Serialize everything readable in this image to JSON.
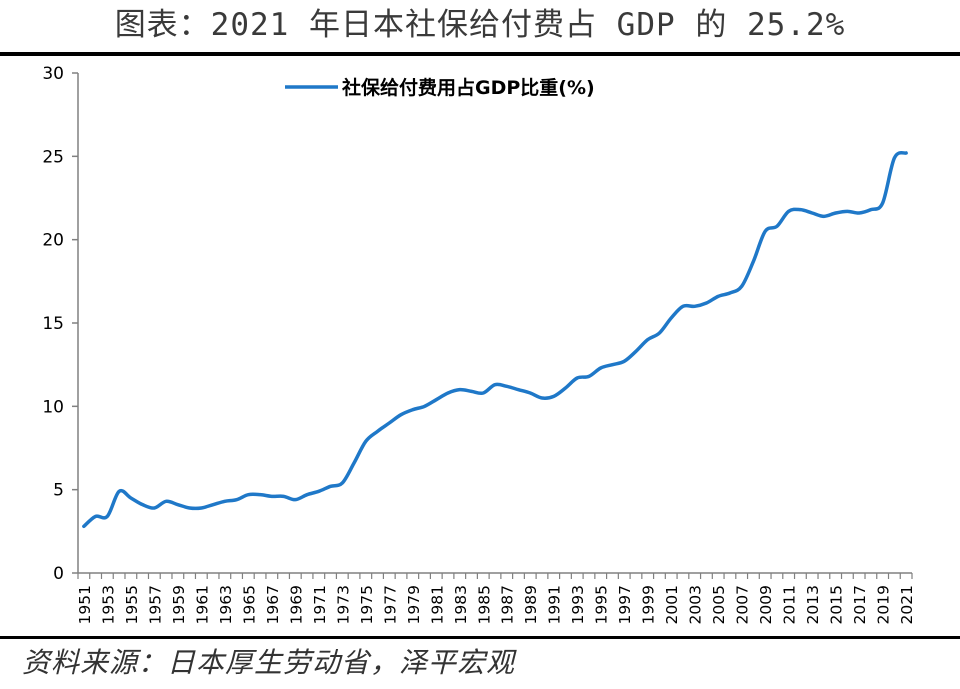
{
  "title": "图表：2021 年日本社保给付费占 GDP 的 25.2%",
  "source": "资料来源：日本厚生劳动省，泽平宏观",
  "colors": {
    "series": "#1f78c8",
    "axis": "#808080",
    "text": "#000000"
  },
  "chart_data": {
    "type": "line",
    "legend_position": "top-center",
    "grid": false,
    "ylim": [
      0,
      30
    ],
    "yticks": [
      0,
      5,
      10,
      15,
      20,
      25,
      30
    ],
    "xtick_labels": [
      "1951",
      "1953",
      "1955",
      "1957",
      "1959",
      "1961",
      "1963",
      "1965",
      "1967",
      "1969",
      "1971",
      "1973",
      "1975",
      "1977",
      "1979",
      "1981",
      "1983",
      "1985",
      "1987",
      "1989",
      "1991",
      "1993",
      "1995",
      "1997",
      "1999",
      "2001",
      "2003",
      "2005",
      "2007",
      "2009",
      "2011",
      "2013",
      "2015",
      "2017",
      "2019",
      "2021"
    ],
    "x": [
      1951,
      1952,
      1953,
      1954,
      1955,
      1956,
      1957,
      1958,
      1959,
      1960,
      1961,
      1962,
      1963,
      1964,
      1965,
      1966,
      1967,
      1968,
      1969,
      1970,
      1971,
      1972,
      1973,
      1974,
      1975,
      1976,
      1977,
      1978,
      1979,
      1980,
      1981,
      1982,
      1983,
      1984,
      1985,
      1986,
      1987,
      1988,
      1989,
      1990,
      1991,
      1992,
      1993,
      1994,
      1995,
      1996,
      1997,
      1998,
      1999,
      2000,
      2001,
      2002,
      2003,
      2004,
      2005,
      2006,
      2007,
      2008,
      2009,
      2010,
      2011,
      2012,
      2013,
      2014,
      2015,
      2016,
      2017,
      2018,
      2019,
      2020,
      2021
    ],
    "series": [
      {
        "name": "社保给付费用占GDP比重(%)",
        "values": [
          2.8,
          3.4,
          3.4,
          4.9,
          4.5,
          4.1,
          3.9,
          4.3,
          4.1,
          3.9,
          3.9,
          4.1,
          4.3,
          4.4,
          4.7,
          4.7,
          4.6,
          4.6,
          4.4,
          4.7,
          4.9,
          5.2,
          5.4,
          6.6,
          7.9,
          8.5,
          9.0,
          9.5,
          9.8,
          10.0,
          10.4,
          10.8,
          11.0,
          10.9,
          10.8,
          11.3,
          11.2,
          11.0,
          10.8,
          10.5,
          10.6,
          11.1,
          11.7,
          11.8,
          12.3,
          12.5,
          12.7,
          13.3,
          14.0,
          14.4,
          15.3,
          16.0,
          16.0,
          16.2,
          16.6,
          16.8,
          17.2,
          18.7,
          20.5,
          20.8,
          21.7,
          21.8,
          21.6,
          21.4,
          21.6,
          21.7,
          21.6,
          21.8,
          22.2,
          24.9,
          25.2
        ]
      }
    ]
  }
}
